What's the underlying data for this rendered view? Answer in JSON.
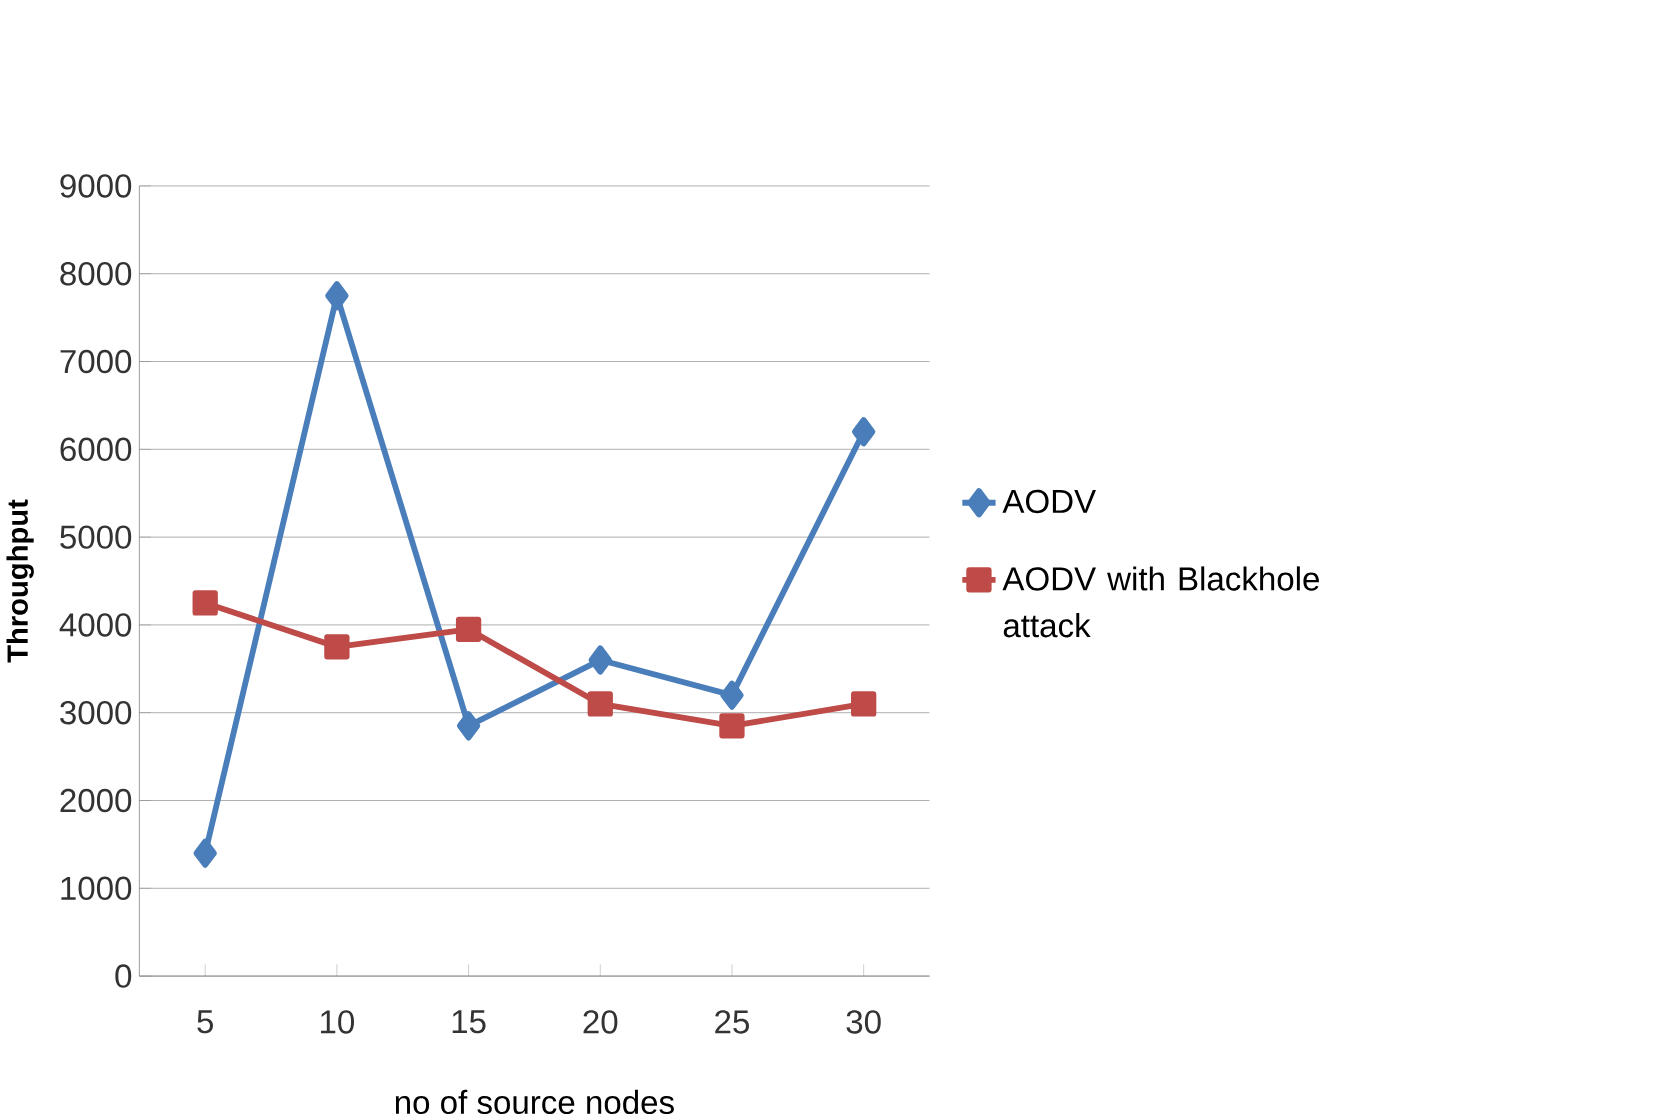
{
  "chart_data": {
    "type": "line",
    "xlabel": "no of source nodes",
    "ylabel": "Throughput",
    "categories": [
      "5",
      "10",
      "15",
      "20",
      "25",
      "30"
    ],
    "series": [
      {
        "name": "AODV",
        "color": "#4a7ebb",
        "marker": "diamond",
        "values": [
          1400,
          7750,
          2850,
          3600,
          3200,
          6200
        ]
      },
      {
        "name": "AODV with Blackhole attack",
        "color": "#be4b48",
        "marker": "square",
        "values": [
          4250,
          3750,
          3950,
          3100,
          2850,
          3100
        ]
      }
    ],
    "ylim": [
      0,
      9000
    ],
    "yticks": [
      0,
      1000,
      2000,
      3000,
      4000,
      5000,
      6000,
      7000,
      8000,
      9000
    ],
    "grid": "y",
    "legend": "right",
    "line_style": "solid"
  }
}
